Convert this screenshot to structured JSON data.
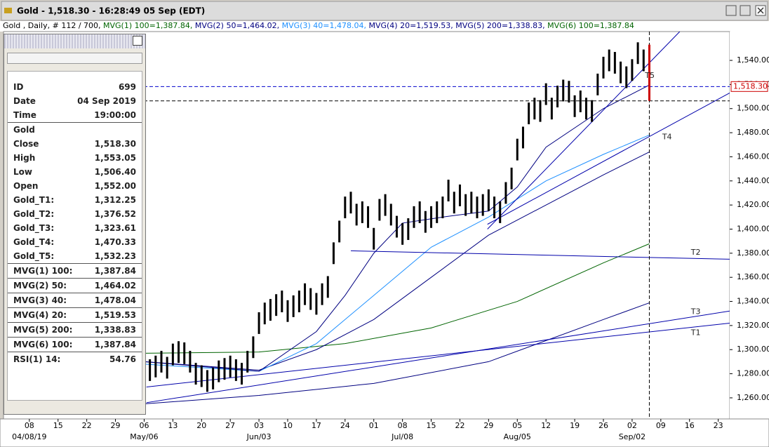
{
  "window": {
    "title": "Gold - 1,518.30 - 16:28:49  05 Sep (EDT)"
  },
  "info_line": [
    {
      "text": "Gold , Daily, # 112 / 700, ",
      "color": "#000000"
    },
    {
      "text": "MVG(1) 100=1,387.84, ",
      "color": "#006400"
    },
    {
      "text": "MVG(2) 50=1,464.02, ",
      "color": "#000080"
    },
    {
      "text": "MVG(3) 40=1,478.04, ",
      "color": "#1e90ff"
    },
    {
      "text": "MVG(4) 20=1,519.53, ",
      "color": "#000080"
    },
    {
      "text": "MVG(5) 200=1,338.83, ",
      "color": "#000080"
    },
    {
      "text": "MVG(6) 100=1,387.84",
      "color": "#006400"
    }
  ],
  "data_window": {
    "rows": [
      {
        "label": "ID",
        "value": "699"
      },
      {
        "label": "Date",
        "value": "04 Sep 2019"
      },
      {
        "label": "Time",
        "value": "19:00:00",
        "sep": true
      },
      {
        "label": "Gold",
        "value": ""
      },
      {
        "label": "Close",
        "value": "1,518.30"
      },
      {
        "label": "High",
        "value": "1,553.05"
      },
      {
        "label": "Low",
        "value": "1,506.40"
      },
      {
        "label": "Open",
        "value": "1,552.00"
      },
      {
        "label": "Gold_T1:",
        "value": "1,312.25"
      },
      {
        "label": "Gold_T2:",
        "value": "1,376.52"
      },
      {
        "label": "Gold_T3:",
        "value": "1,323.61"
      },
      {
        "label": "Gold_T4:",
        "value": "1,470.33"
      },
      {
        "label": "Gold_T5:",
        "value": "1,532.23",
        "sep": true
      },
      {
        "label": "MVG(1) 100:",
        "value": "1,387.84",
        "sep": true
      },
      {
        "label": "MVG(2) 50:",
        "value": "1,464.02",
        "sep": true
      },
      {
        "label": "MVG(3) 40:",
        "value": "1,478.04",
        "sep": true
      },
      {
        "label": "MVG(4) 20:",
        "value": "1,519.53",
        "sep": true
      },
      {
        "label": "MVG(5) 200:",
        "value": "1,338.83",
        "sep": true
      },
      {
        "label": "MVG(6) 100:",
        "value": "1,387.84",
        "sep": true
      },
      {
        "label": "RSI(1) 14:",
        "value": "54.76"
      }
    ]
  },
  "chart_data": {
    "type": "ohlc",
    "xlim": [
      -4.5,
      122
    ],
    "ylim": [
      1242.5,
      1563.9
    ],
    "xticks": [
      {
        "value": 0,
        "label": "08"
      },
      {
        "value": 5,
        "label": "15"
      },
      {
        "value": 10,
        "label": "22"
      },
      {
        "value": 15,
        "label": "29"
      },
      {
        "value": 20,
        "label": "06"
      },
      {
        "value": 25,
        "label": "13"
      },
      {
        "value": 30,
        "label": "20"
      },
      {
        "value": 35,
        "label": "27"
      },
      {
        "value": 40,
        "label": "03"
      },
      {
        "value": 45,
        "label": "10"
      },
      {
        "value": 50,
        "label": "17"
      },
      {
        "value": 55,
        "label": "24"
      },
      {
        "value": 60,
        "label": "01"
      },
      {
        "value": 65,
        "label": "08"
      },
      {
        "value": 70,
        "label": "15"
      },
      {
        "value": 75,
        "label": "22"
      },
      {
        "value": 80,
        "label": "29"
      },
      {
        "value": 85,
        "label": "05"
      },
      {
        "value": 90,
        "label": "12"
      },
      {
        "value": 95,
        "label": "19"
      },
      {
        "value": 100,
        "label": "26"
      },
      {
        "value": 105,
        "label": "02"
      },
      {
        "value": 110,
        "label": "09"
      },
      {
        "value": 115,
        "label": "16"
      },
      {
        "value": 120,
        "label": "23"
      }
    ],
    "month_ticks": [
      {
        "value": 0,
        "label": "04/08/19"
      },
      {
        "value": 20,
        "label": "May/06"
      },
      {
        "value": 40,
        "label": "Jun/03"
      },
      {
        "value": 65,
        "label": "Jul/08"
      },
      {
        "value": 85,
        "label": "Aug/05"
      },
      {
        "value": 105,
        "label": "Sep/02"
      }
    ],
    "yticks": [
      {
        "value": 1260,
        "label": "1,260.00"
      },
      {
        "value": 1280,
        "label": "1,280.00"
      },
      {
        "value": 1300,
        "label": "1,300.00"
      },
      {
        "value": 1320,
        "label": "1,320.00"
      },
      {
        "value": 1340,
        "label": "1,340.00"
      },
      {
        "value": 1360,
        "label": "1,360.00"
      },
      {
        "value": 1380,
        "label": "1,380.00"
      },
      {
        "value": 1400,
        "label": "1,400.00"
      },
      {
        "value": 1420,
        "label": "1,420.00"
      },
      {
        "value": 1440,
        "label": "1,440.00"
      },
      {
        "value": 1460,
        "label": "1,460.00"
      },
      {
        "value": 1480,
        "label": "1,480.00"
      },
      {
        "value": 1500,
        "label": "1,500.00"
      },
      {
        "value": 1520,
        "label": "1,520.00"
      },
      {
        "value": 1540,
        "label": "1,540.00"
      }
    ],
    "bars": {
      "color": "#000000",
      "last_color": "#cc0000",
      "x": [
        20,
        21,
        22,
        23,
        24,
        25,
        26,
        27,
        28,
        29,
        30,
        31,
        32,
        33,
        34,
        35,
        36,
        37,
        38,
        39,
        40,
        41,
        42,
        43,
        44,
        45,
        46,
        47,
        48,
        49,
        50,
        51,
        52,
        53,
        54,
        55,
        56,
        57,
        58,
        59,
        60,
        61,
        62,
        63,
        64,
        65,
        66,
        67,
        68,
        69,
        70,
        71,
        72,
        73,
        74,
        75,
        76,
        77,
        78,
        79,
        80,
        81,
        82,
        83,
        84,
        85,
        86,
        87,
        88,
        89,
        90,
        91,
        92,
        93,
        94,
        95,
        96,
        97,
        98,
        99,
        100,
        101,
        102,
        103,
        104,
        105,
        106,
        107,
        108
      ],
      "high": [
        1294,
        1292,
        1295,
        1299,
        1294,
        1305,
        1307,
        1306,
        1299,
        1289,
        1287,
        1283,
        1285,
        1291,
        1293,
        1295,
        1292,
        1289,
        1299,
        1311,
        1331,
        1339,
        1342,
        1346,
        1349,
        1341,
        1345,
        1349,
        1355,
        1351,
        1347,
        1355,
        1361,
        1389,
        1407,
        1427,
        1431,
        1421,
        1423,
        1419,
        1401,
        1425,
        1429,
        1421,
        1411,
        1405,
        1409,
        1419,
        1423,
        1415,
        1419,
        1423,
        1427,
        1441,
        1431,
        1437,
        1429,
        1431,
        1427,
        1429,
        1433,
        1427,
        1423,
        1439,
        1451,
        1475,
        1485,
        1505,
        1509,
        1507,
        1521,
        1509,
        1519,
        1524,
        1523,
        1511,
        1515,
        1509,
        1507,
        1529,
        1543,
        1549,
        1547,
        1539,
        1535,
        1541,
        1555,
        1549,
        1553.05
      ],
      "low": [
        1276,
        1274,
        1277,
        1281,
        1276,
        1287,
        1289,
        1288,
        1281,
        1271,
        1269,
        1265,
        1267,
        1273,
        1275,
        1277,
        1274,
        1271,
        1281,
        1293,
        1313,
        1321,
        1324,
        1328,
        1331,
        1323,
        1327,
        1331,
        1337,
        1333,
        1329,
        1337,
        1343,
        1371,
        1389,
        1409,
        1413,
        1403,
        1405,
        1401,
        1383,
        1407,
        1411,
        1403,
        1393,
        1387,
        1391,
        1401,
        1405,
        1397,
        1401,
        1405,
        1409,
        1423,
        1413,
        1419,
        1411,
        1413,
        1409,
        1411,
        1415,
        1409,
        1405,
        1421,
        1433,
        1457,
        1467,
        1487,
        1491,
        1489,
        1503,
        1491,
        1501,
        1506,
        1505,
        1493,
        1497,
        1491,
        1489,
        1511,
        1525,
        1531,
        1529,
        1521,
        1517,
        1523,
        1537,
        1531,
        1506.4
      ]
    },
    "moving_averages": [
      {
        "color": "#006400",
        "x": [
          20,
          40,
          55,
          70,
          85,
          100,
          108
        ],
        "y": [
          1297,
          1298,
          1305,
          1318,
          1340,
          1372,
          1387.84
        ]
      },
      {
        "color": "#000080",
        "x": [
          20,
          40,
          50,
          60,
          70,
          80,
          90,
          100,
          108
        ],
        "y": [
          1290,
          1283,
          1300,
          1325,
          1360,
          1395,
          1420,
          1445,
          1464.02
        ]
      },
      {
        "color": "#1e90ff",
        "x": [
          20,
          40,
          50,
          60,
          70,
          80,
          90,
          100,
          108
        ],
        "y": [
          1288,
          1282,
          1305,
          1345,
          1385,
          1410,
          1440,
          1462,
          1478.04
        ]
      },
      {
        "color": "#000080",
        "x": [
          20,
          40,
          50,
          55,
          60,
          65,
          72,
          80,
          85,
          90,
          100,
          108
        ],
        "y": [
          1290,
          1282,
          1315,
          1345,
          1380,
          1405,
          1410,
          1415,
          1435,
          1468,
          1500,
          1519.53
        ]
      },
      {
        "color": "#000080",
        "x": [
          20,
          40,
          60,
          80,
          100,
          108
        ],
        "y": [
          1255,
          1262,
          1272,
          1290,
          1325,
          1338.83
        ]
      }
    ],
    "trendlines": [
      {
        "name": "T1",
        "color": "#0000aa",
        "x": [
          20.4,
          122
        ],
        "y": [
          1269,
          1322
        ]
      },
      {
        "name": "T2",
        "color": "#0000aa",
        "x": [
          56,
          122
        ],
        "y": [
          1382,
          1375
        ]
      },
      {
        "name": "T3",
        "color": "#0000aa",
        "x": [
          20.4,
          122
        ],
        "y": [
          1256,
          1332
        ]
      },
      {
        "name": "T4",
        "color": "#0000aa",
        "x": [
          79.8,
          122
        ],
        "y": [
          1404,
          1513
        ]
      },
      {
        "name": "T5",
        "color": "#0000aa",
        "x": [
          79.8,
          113.3
        ],
        "y": [
          1400,
          1563.9
        ]
      }
    ],
    "hlines": [
      {
        "value": 1518.3,
        "color": "#0000cc",
        "label": "1,518.30"
      },
      {
        "value": 1506.4,
        "color": "#000000"
      }
    ],
    "vline": {
      "x": 108,
      "color": "#000000"
    }
  }
}
